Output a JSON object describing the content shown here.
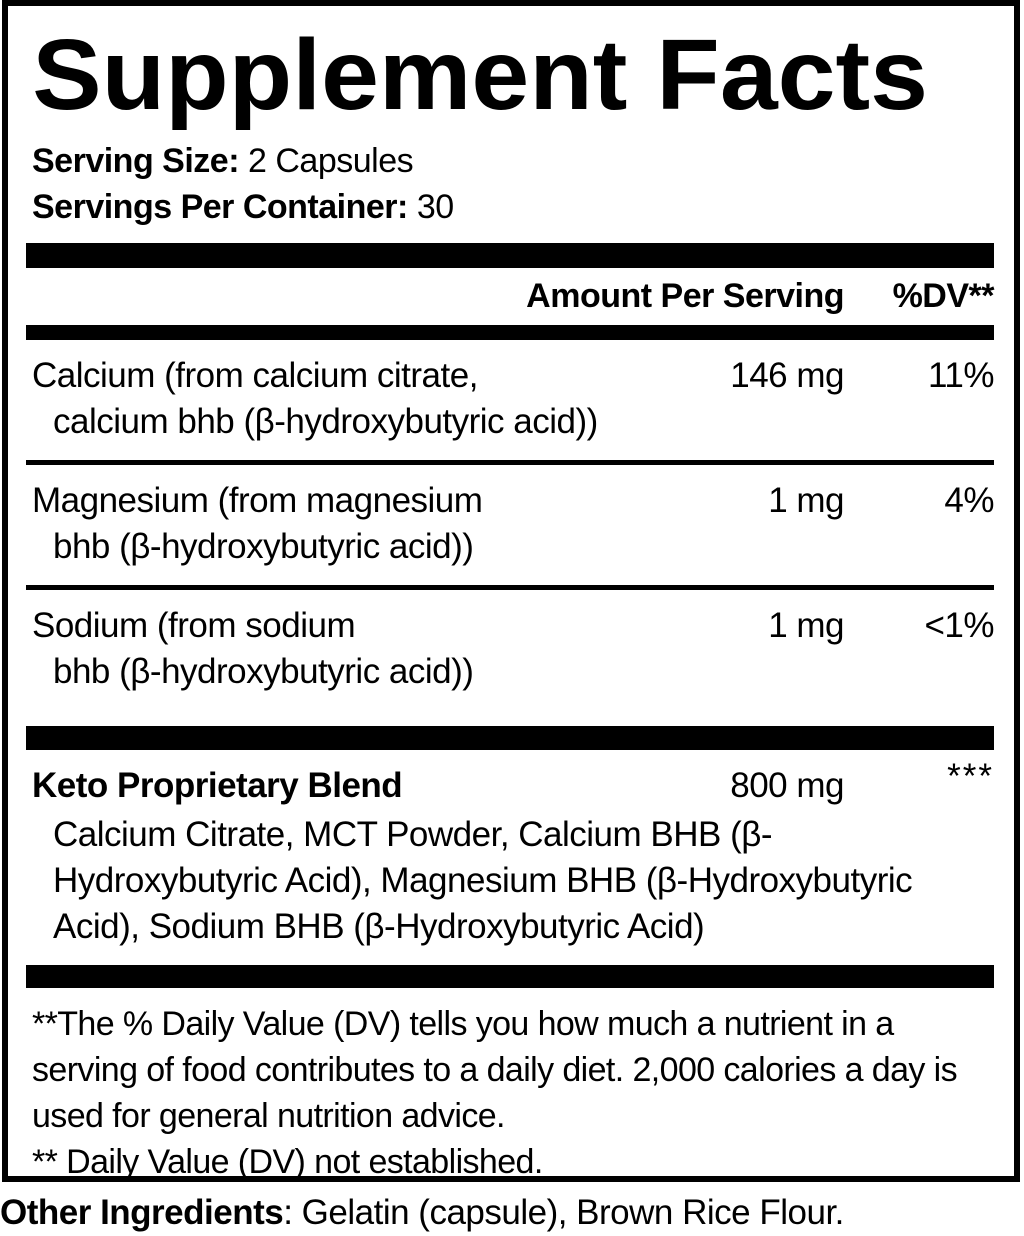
{
  "title": "Supplement Facts",
  "serving": {
    "size_label": "Serving Size:",
    "size_value": "2 Capsules",
    "per_container_label": "Servings Per Container:",
    "per_container_value": "30"
  },
  "table": {
    "header": {
      "amount": "Amount Per Serving",
      "dv": "%DV**"
    },
    "rows": [
      {
        "name_line1": "Calcium (from calcium citrate,",
        "name_line2": "calcium bhb (β-hydroxybutyric acid))",
        "amount": "146 mg",
        "dv": "11%"
      },
      {
        "name_line1": "Magnesium (from magnesium",
        "name_line2": "bhb (β-hydroxybutyric acid))",
        "amount": "1 mg",
        "dv": "4%"
      },
      {
        "name_line1": "Sodium (from sodium",
        "name_line2": "bhb (β-hydroxybutyric acid))",
        "amount": "1 mg",
        "dv": "<1%"
      }
    ],
    "blend": {
      "name": "Keto Proprietary Blend",
      "amount": "800 mg",
      "dv": "***",
      "description": "Calcium Citrate, MCT Powder, Calcium BHB (β-Hydroxybutyric Acid), Magnesium BHB (β-Hydroxybutyric Acid), Sodium BHB (β-Hydroxybutyric Acid)"
    }
  },
  "footnotes": {
    "dv_note": "**The % Daily Value (DV) tells you how much a nutrient in a serving of food contributes to a daily diet. 2,000 calories a day is used for general nutrition advice.",
    "not_established": "** Daily Value (DV) not established."
  },
  "other_ingredients": {
    "label": "Other Ingredients",
    "value": ": Gelatin (capsule), Brown Rice Flour."
  }
}
